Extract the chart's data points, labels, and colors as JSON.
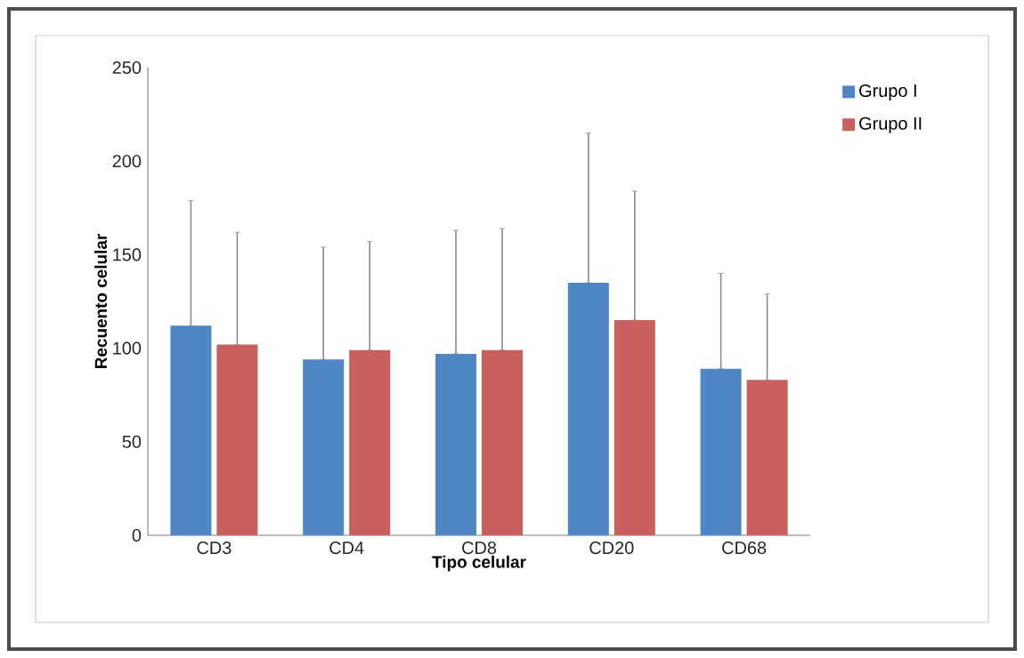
{
  "chart_data": {
    "type": "bar",
    "xlabel": "Tipo celular",
    "ylabel": "Recuento celular",
    "categories": [
      "CD3",
      "CD4",
      "CD8",
      "CD20",
      "CD68"
    ],
    "series": [
      {
        "name": "Grupo I",
        "color": "#4f86c6",
        "values": [
          112,
          94,
          97,
          135,
          89
        ],
        "errors": [
          [
            112,
            179
          ],
          [
            94,
            154
          ],
          [
            97,
            163
          ],
          [
            135,
            215
          ],
          [
            89,
            140
          ]
        ]
      },
      {
        "name": "Grupo II",
        "color": "#c9605e",
        "values": [
          102,
          99,
          99,
          115,
          83
        ],
        "errors": [
          [
            102,
            162
          ],
          [
            99,
            157
          ],
          [
            99,
            164
          ],
          [
            115,
            184
          ],
          [
            83,
            129
          ]
        ]
      }
    ],
    "ylim": [
      0,
      250
    ],
    "yticks": [
      0,
      50,
      100,
      150,
      200,
      250
    ],
    "legend": "top right"
  }
}
